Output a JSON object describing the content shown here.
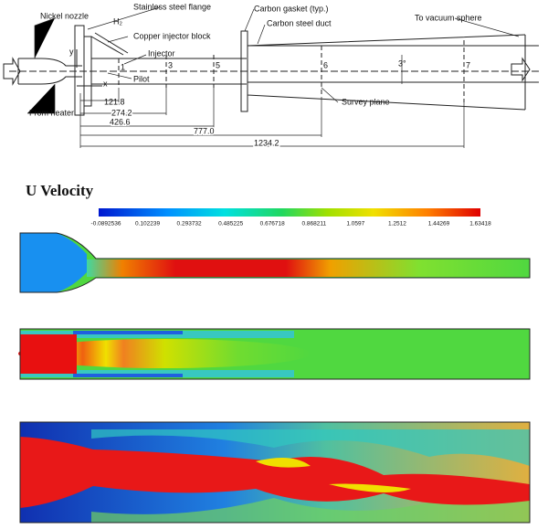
{
  "schematic": {
    "labels": {
      "nickel_nozzle": "Nickel nozzle",
      "flange": "Stainless steel flange",
      "h2": "H₂",
      "injector_block": "Copper injector block",
      "injector": "Injector",
      "pilot": "Pilot",
      "gasket": "Carbon gasket (typ.)",
      "duct": "Carbon steel duct",
      "vacuum": "To vacuum sphere",
      "survey": "Survey plane",
      "heater": "From heater",
      "x_axis": "x",
      "y_axis": "y",
      "angle": "3°"
    },
    "stations": [
      "1",
      "3",
      "5",
      "6",
      "7"
    ],
    "dimensions": [
      "121.8",
      "274.2",
      "426.6",
      "777.0",
      "1234.2"
    ]
  },
  "contours": {
    "title": "U Velocity",
    "colorbar_ticks": [
      "-0.0892536",
      "0.102239",
      "0.293732",
      "0.485225",
      "0.676718",
      "0.868211",
      "1.0597",
      "1.2512",
      "1.44269",
      "1.63418"
    ]
  }
}
